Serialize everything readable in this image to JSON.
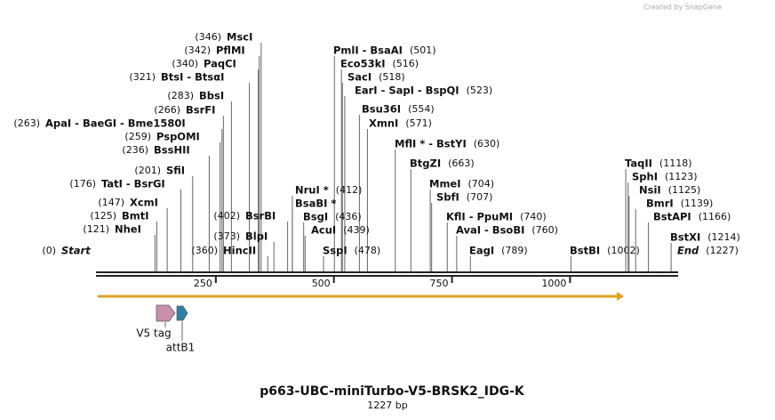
{
  "watermark": "Created by SnapGene",
  "map": {
    "title": "p663-UBC-miniTurbo-V5-BRSK2_IDG-K",
    "length": "1227 bp",
    "start": {
      "name": "Start",
      "site": 0,
      "label": "(0)"
    },
    "end": {
      "name": "End",
      "site": 1227,
      "label": "(1227)"
    },
    "ruler_ticks": [
      250,
      500,
      750,
      1000
    ],
    "features": [
      {
        "name": "V5 tag"
      },
      {
        "name": "attB1"
      }
    ],
    "enzymes": [
      {
        "name": "MscI",
        "site": 346,
        "label": "(346)"
      },
      {
        "name": "PflMI",
        "site": 342,
        "label": "(342)"
      },
      {
        "name": "PaqCI",
        "site": 340,
        "label": "(340)"
      },
      {
        "name": "BtsI - BtsαI",
        "site": 321,
        "label": "(321)"
      },
      {
        "name": "BbsI",
        "site": 283,
        "label": "(283)"
      },
      {
        "name": "BsrFI",
        "site": 266,
        "label": "(266)"
      },
      {
        "name": "ApaI - BaeGI - Bme1580I",
        "site": 263,
        "label": "(263)"
      },
      {
        "name": "PspOMI",
        "site": 259,
        "label": "(259)"
      },
      {
        "name": "BssHII",
        "site": 236,
        "label": "(236)"
      },
      {
        "name": "SfiI",
        "site": 201,
        "label": "(201)"
      },
      {
        "name": "TatI - BsrGI",
        "site": 176,
        "label": "(176)"
      },
      {
        "name": "XcmI",
        "site": 147,
        "label": "(147)"
      },
      {
        "name": "BmtI",
        "site": 125,
        "label": "(125)"
      },
      {
        "name": "NheI",
        "site": 121,
        "label": "(121)"
      },
      {
        "name": "BsrBI",
        "site": 402,
        "label": "(402)"
      },
      {
        "name": "BlpI",
        "site": 373,
        "label": "(373)"
      },
      {
        "name": "HincII",
        "site": 360,
        "label": "(360)"
      },
      {
        "name": "PmlI - BsaAI",
        "site": 501,
        "label": "(501)"
      },
      {
        "name": "Eco53kI",
        "site": 516,
        "label": "(516)"
      },
      {
        "name": "SacI",
        "site": 518,
        "label": "(518)"
      },
      {
        "name": "EarI - SapI - BspQI",
        "site": 523,
        "label": "(523)"
      },
      {
        "name": "Bsu36I",
        "site": 554,
        "label": "(554)"
      },
      {
        "name": "XmnI",
        "site": 571,
        "label": "(571)"
      },
      {
        "name": "MflI * - BstYI",
        "site": 630,
        "label": "(630)"
      },
      {
        "name": "BtgZI",
        "site": 663,
        "label": "(663)"
      },
      {
        "name": "NruI *",
        "site": 412,
        "label": "(412)"
      },
      {
        "name": "BsaBI *",
        "site": 412
      },
      {
        "name": "BsgI",
        "site": 436,
        "label": "(436)"
      },
      {
        "name": "AcuI",
        "site": 439,
        "label": "(439)"
      },
      {
        "name": "SspI",
        "site": 478,
        "label": "(478)"
      },
      {
        "name": "MmeI",
        "site": 704,
        "label": "(704)"
      },
      {
        "name": "SbfI",
        "site": 707,
        "label": "(707)"
      },
      {
        "name": "KflI - PpuMI",
        "site": 740,
        "label": "(740)"
      },
      {
        "name": "AvaI - BsoBI",
        "site": 760,
        "label": "(760)"
      },
      {
        "name": "EagI",
        "site": 789,
        "label": "(789)"
      },
      {
        "name": "BstBI",
        "site": 1002,
        "label": "(1002)"
      },
      {
        "name": "TaqII",
        "site": 1118,
        "label": "(1118)"
      },
      {
        "name": "SphI",
        "site": 1123,
        "label": "(1123)"
      },
      {
        "name": "NsiI",
        "site": 1125,
        "label": "(1125)"
      },
      {
        "name": "BmrI",
        "site": 1139,
        "label": "(1139)"
      },
      {
        "name": "BstAPI",
        "site": 1166,
        "label": "(1166)"
      },
      {
        "name": "BstXI",
        "site": 1214,
        "label": "(1214)"
      }
    ]
  }
}
